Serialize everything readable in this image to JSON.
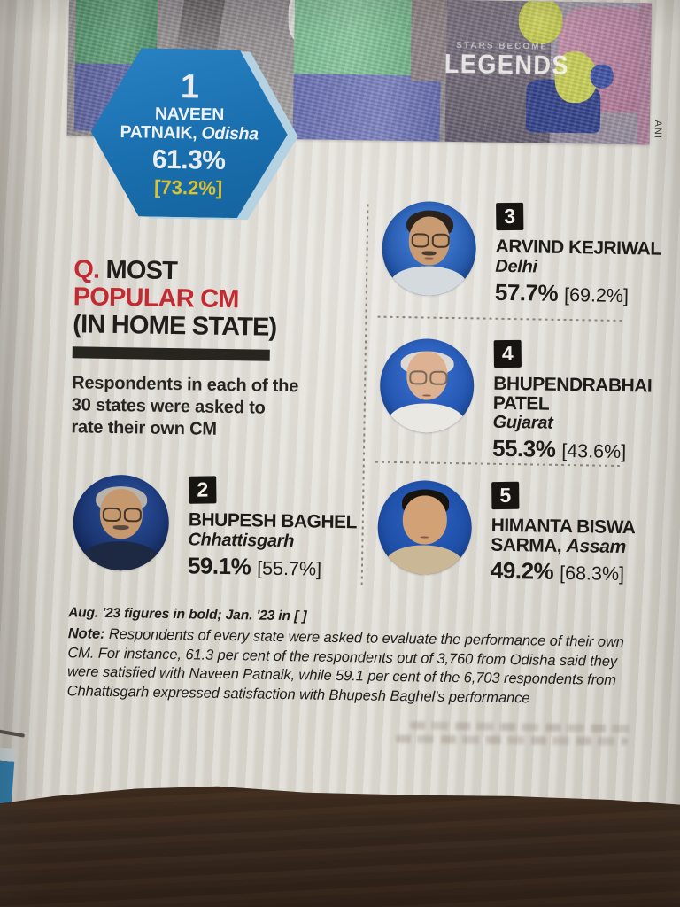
{
  "publication": {
    "banner_kicker": "STARS BECOME",
    "banner_title": "LEGENDS",
    "photo_credit": "ANI"
  },
  "question": {
    "q": "Q.",
    "title_rest": "MOST",
    "title_line2": "POPULAR CM",
    "title_line3": "(IN HOME STATE)",
    "description": "Respondents in each of the 30 states were asked to rate their own CM"
  },
  "ranking": [
    {
      "rank": "1",
      "name": "NAVEEN PATNAIK,",
      "state": "Odisha",
      "aug23": "61.3%",
      "jan23": "[73.2%]"
    },
    {
      "rank": "2",
      "name": "BHUPESH BAGHEL",
      "state": "Chhattisgarh",
      "aug23": "59.1%",
      "jan23": "[55.7%]"
    },
    {
      "rank": "3",
      "name": "ARVIND KEJRIWAL",
      "state": "Delhi",
      "aug23": "57.7%",
      "jan23": "[69.2%]"
    },
    {
      "rank": "4",
      "name": "BHUPENDRABHAI PATEL",
      "state": "Gujarat",
      "aug23": "55.3%",
      "jan23": "[43.6%]"
    },
    {
      "rank": "5",
      "name": "HIMANTA BISWA SARMA,",
      "state": "Assam",
      "aug23": "49.2%",
      "jan23": "[68.3%]"
    }
  ],
  "footnote": {
    "legend": "Aug. '23 figures in bold; Jan. '23 in [ ]",
    "note_label": "Note:",
    "note_text": " Respondents of every state were asked to evaluate the performance of their own CM. For instance, 61.3 per cent of the respondents out of 3,760 from Odisha said they were satisfied with Naveen Patnaik, while 59.1 per cent of the 6,703 respondents from Chhattisgarh expressed satisfaction with Bhupesh Baghel's performance"
  },
  "colors": {
    "hexagon_blue": "#1d76b4",
    "accent_red": "#c22b32",
    "bracket_yellow": "#d9c331",
    "badge_black": "#171511"
  }
}
